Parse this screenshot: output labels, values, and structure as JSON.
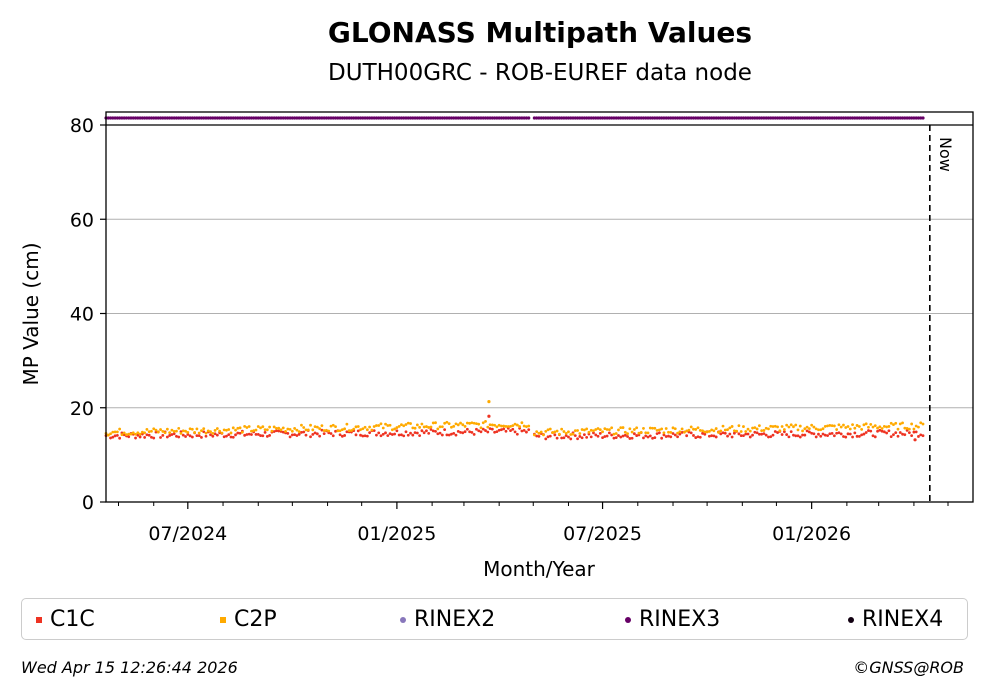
{
  "chart_data": {
    "type": "scatter",
    "title": "GLONASS Multipath Values",
    "subtitle": "DUTH00GRC - ROB-EUREF data node",
    "xlabel": "Month/Year",
    "ylabel": "MP Value (cm)",
    "ylim": [
      0,
      80
    ],
    "yticks": [
      "0",
      "20",
      "40",
      "60",
      "80"
    ],
    "xlim": [
      "2024-04-20",
      "2026-05-23"
    ],
    "xtick_labels": [
      "07/2024",
      "01/2025",
      "07/2025",
      "01/2026"
    ],
    "xtick_dates": [
      "2024-07-01",
      "2025-01-01",
      "2025-07-01",
      "2026-01-01"
    ],
    "grid": "y",
    "now_label": "Now",
    "now_date": "2026-04-15",
    "series": [
      {
        "name": "C1C",
        "color": "#ee3322",
        "marker": "x",
        "segments": [
          {
            "start": "2024-04-20",
            "end": "2025-04-28",
            "from": 14.1,
            "to": 15.0
          },
          {
            "start": "2025-05-02",
            "end": "2026-04-10",
            "from": 14.0,
            "to": 14.6
          }
        ],
        "outliers": [
          {
            "date": "2025-03-23",
            "value": 18.2
          },
          {
            "date": "2026-04-02",
            "value": 13.2
          }
        ]
      },
      {
        "name": "C2P",
        "color": "#ffaa00",
        "marker": "x",
        "segments": [
          {
            "start": "2024-04-20",
            "end": "2025-04-28",
            "from": 14.8,
            "to": 16.6
          },
          {
            "start": "2025-05-02",
            "end": "2026-04-10",
            "from": 14.8,
            "to": 16.2
          }
        ],
        "outliers": [
          {
            "date": "2025-03-23",
            "value": 21.3
          }
        ]
      },
      {
        "name": "RINEX2",
        "color": "#8877bb",
        "marker": "dot",
        "segments": []
      },
      {
        "name": "RINEX3",
        "color": "#660066",
        "marker": "dot",
        "band": true,
        "segments": [
          {
            "start": "2024-04-20",
            "end": "2025-04-28"
          },
          {
            "start": "2025-05-02",
            "end": "2026-04-10"
          }
        ]
      },
      {
        "name": "RINEX4",
        "color": "#110011",
        "marker": "dot",
        "segments": []
      }
    ]
  },
  "footer": {
    "timestamp": "Wed Apr 15 12:26:44 2026",
    "credit": "©GNSS@ROB"
  }
}
